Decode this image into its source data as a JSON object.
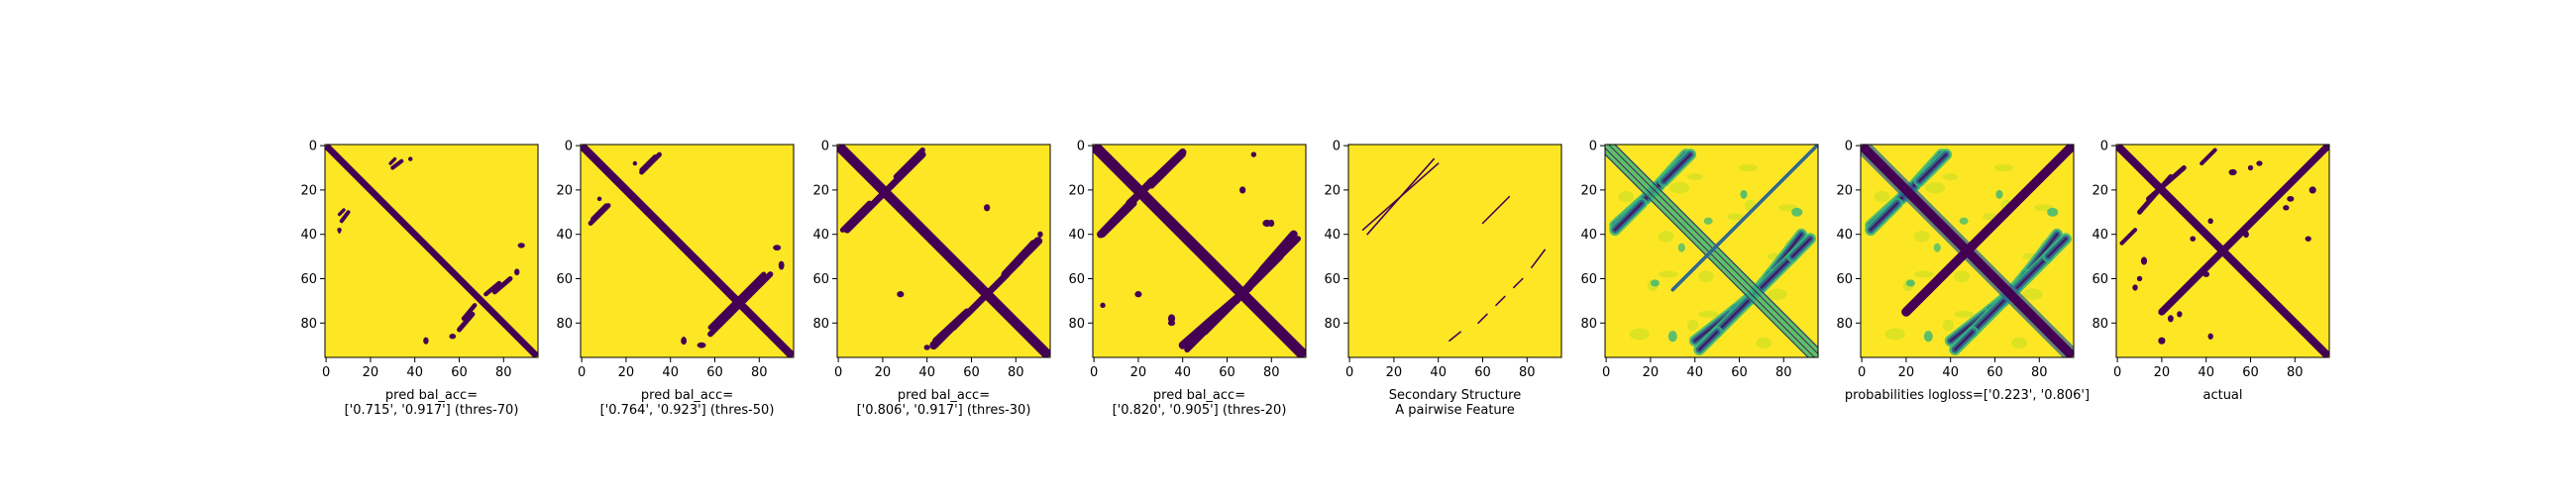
{
  "figure": {
    "colors": {
      "low": "#440154",
      "high": "#fde725",
      "mid1": "#31688e",
      "mid2": "#35b779",
      "light": "#c2df23"
    },
    "panels": [
      {
        "id": "thres70",
        "kind": "binary",
        "caption": [
          "pred bal_acc=",
          "['0.715', '0.917'] (thres-70)"
        ]
      },
      {
        "id": "thres50",
        "kind": "binary",
        "caption": [
          "pred bal_acc=",
          "['0.764', '0.923'] (thres-50)"
        ]
      },
      {
        "id": "thres30",
        "kind": "binary",
        "caption": [
          "pred bal_acc=",
          "['0.806', '0.917'] (thres-30)"
        ]
      },
      {
        "id": "thres20",
        "kind": "binary",
        "caption": [
          "pred bal_acc=",
          "['0.820', '0.905'] (thres-20)"
        ]
      },
      {
        "id": "secondary",
        "kind": "sparse",
        "caption": [
          "Secondary Structure",
          "A pairwise Feature"
        ]
      },
      {
        "id": "pairwise",
        "kind": "continuous",
        "caption": [
          ""
        ]
      },
      {
        "id": "probabilities",
        "kind": "continuous",
        "caption": [
          "probabilities logloss=['0.223', '0.806']"
        ]
      },
      {
        "id": "actual",
        "kind": "binary",
        "caption": [
          "actual"
        ]
      }
    ]
  },
  "chart_data": {
    "type": "heatmap",
    "matrix_size": 96,
    "xlim": [
      0,
      95
    ],
    "ylim": [
      95,
      0
    ],
    "x_ticks": [
      0,
      20,
      40,
      60,
      80
    ],
    "y_ticks": [
      0,
      20,
      40,
      60,
      80
    ],
    "colormap": "viridis",
    "n_panels": 8
  }
}
